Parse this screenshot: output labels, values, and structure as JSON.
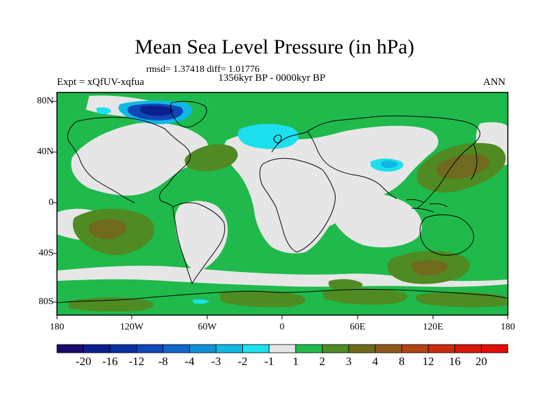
{
  "title": "Mean Sea Level Pressure (in hPa)",
  "stats": "rmsd= 1.37418 diff= 1.01776",
  "period": "1356kyr BP - 0000kyr BP",
  "experiment": "Expt = xQfUV-xqfua",
  "season": "ANN",
  "lat_labels": [
    "80N",
    "40N",
    "0",
    "40S",
    "80S"
  ],
  "lon_labels": [
    "180",
    "120W",
    "60W",
    "0",
    "60E",
    "120E",
    "180"
  ],
  "colorbar": {
    "labels": [
      "-20",
      "-16",
      "-12",
      "-8",
      "-4",
      "-3",
      "-2",
      "-1",
      "1",
      "2",
      "3",
      "4",
      "8",
      "12",
      "16",
      "20"
    ],
    "colors": [
      "#1a0a6a",
      "#0c1f8c",
      "#0a2fa4",
      "#0d47b8",
      "#1068c8",
      "#0f8fd6",
      "#10b8e4",
      "#1ce0ee",
      "#e6e6e6",
      "#1fba4b",
      "#4f8a22",
      "#706a1e",
      "#8f561c",
      "#b24312",
      "#c82a0e",
      "#d61608",
      "#e50b05"
    ]
  },
  "palette": {
    "neutral": "#e6e6e6",
    "green": "#1fba4b",
    "olive": "#4f8a22",
    "brown": "#706a1e",
    "cyan": "#1ce0ee",
    "lightblue": "#10b8e4",
    "blue": "#0d47b8",
    "navy": "#0c1f8c"
  }
}
